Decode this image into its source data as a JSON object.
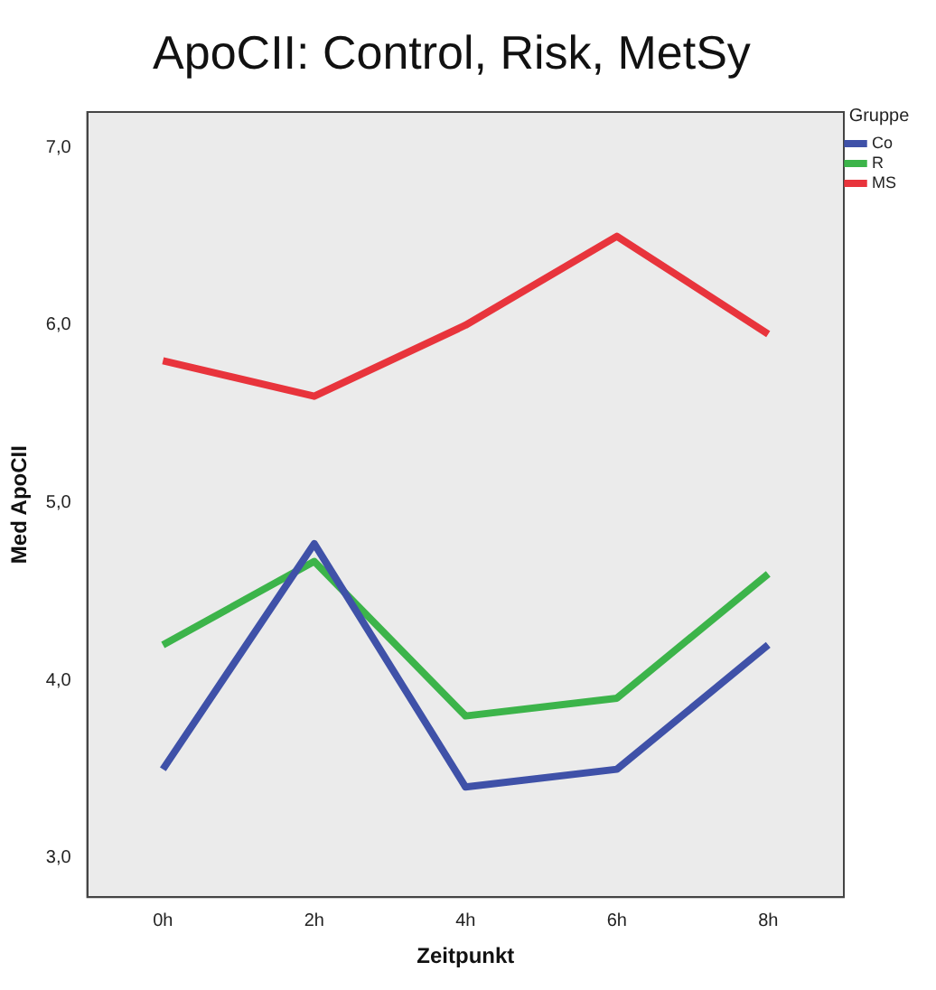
{
  "chart_data": {
    "type": "line",
    "title": "ApoCII: Control, Risk, MetSy",
    "xlabel": "Zeitpunkt",
    "ylabel": "Med ApoCII",
    "legend_title": "Gruppe",
    "legend": "top right",
    "grid": false,
    "marker": "none",
    "line_style": "solid",
    "categories": [
      "0h",
      "2h",
      "4h",
      "6h",
      "8h"
    ],
    "ylim": [
      2.78,
      7.2
    ],
    "yticks": [
      {
        "value": 3,
        "label": "3,0"
      },
      {
        "value": 4,
        "label": "4,0"
      },
      {
        "value": 5,
        "label": "5,0"
      },
      {
        "value": 6,
        "label": "6,0"
      },
      {
        "value": 7,
        "label": "7,0"
      }
    ],
    "series": [
      {
        "name": "Co",
        "color": "#3f51a8",
        "values": [
          3.5,
          4.77,
          3.4,
          3.5,
          4.2
        ]
      },
      {
        "name": "R",
        "color": "#3cb44a",
        "values": [
          4.2,
          4.67,
          3.8,
          3.9,
          4.6
        ]
      },
      {
        "name": "MS",
        "color": "#e8343c",
        "values": [
          5.8,
          5.6,
          6.0,
          6.5,
          5.95
        ]
      }
    ]
  }
}
